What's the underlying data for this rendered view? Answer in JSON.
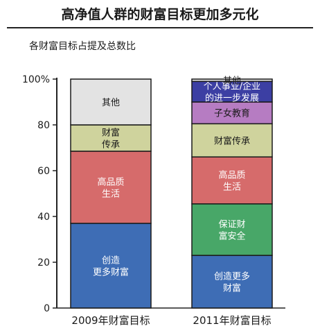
{
  "title": "高净值人群的财富目标更加多元化",
  "subtitle": "各财富目标占提及总数比",
  "chart_data": {
    "type": "bar",
    "stacked": true,
    "ylim": [
      0,
      100
    ],
    "yticks": [
      "0",
      "20",
      "40",
      "60",
      "80",
      "100%"
    ],
    "categories": [
      "2009年财富目标",
      "2011年财富目标"
    ],
    "bars": [
      {
        "category": "2009年财富目标",
        "segments": [
          {
            "label": [
              "创造",
              "更多财富"
            ],
            "value": 37,
            "color": "#3e6db5"
          },
          {
            "label": [
              "高品质",
              "生活"
            ],
            "value": 31.5,
            "color": "#d66b6b"
          },
          {
            "label": [
              "财富",
              "传承"
            ],
            "value": 11.5,
            "color": "#cfd39d"
          },
          {
            "label": [
              "其他"
            ],
            "value": 20,
            "color": "#e3e3e3"
          }
        ]
      },
      {
        "category": "2011年财富目标",
        "segments": [
          {
            "label": [
              "创造更多",
              "财富"
            ],
            "value": 23,
            "color": "#3e6db5"
          },
          {
            "label": [
              "保证财",
              "富安全"
            ],
            "value": 22.5,
            "color": "#48a768"
          },
          {
            "label": [
              "高品质",
              "生活"
            ],
            "value": 20.5,
            "color": "#d66b6b"
          },
          {
            "label": [
              "财富传承"
            ],
            "value": 14.5,
            "color": "#cfd39d"
          },
          {
            "label": [
              "子女教育"
            ],
            "value": 9.5,
            "color": "#b67cc2"
          },
          {
            "label": [
              "个人事业/企业",
              "的进一步发展"
            ],
            "value": 9,
            "color": "#3c3fa3"
          },
          {
            "label": [
              "其他"
            ],
            "value": 1,
            "color": "#e3e3e3"
          }
        ]
      }
    ]
  }
}
